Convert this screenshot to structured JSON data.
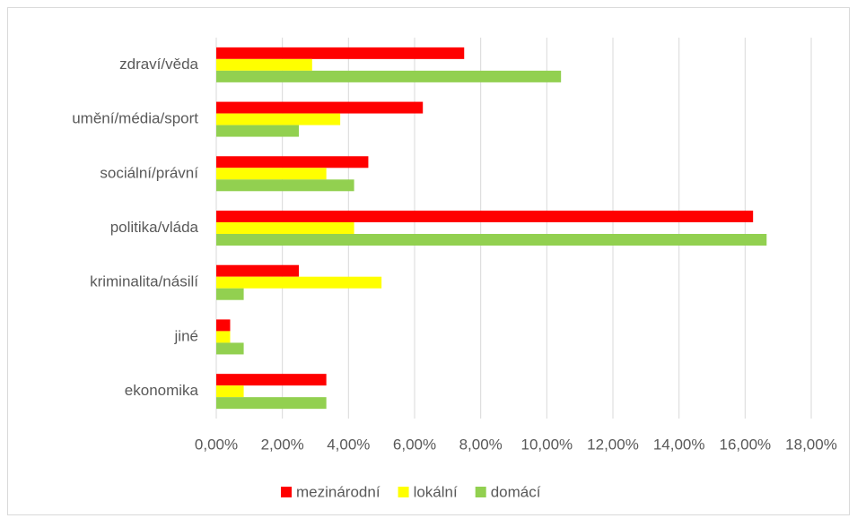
{
  "chart_data": {
    "type": "bar",
    "orientation": "horizontal",
    "categories": [
      "zdraví/věda",
      "umění/média/sport",
      "sociální/právní",
      "politika/vláda",
      "kriminalita/násilí",
      "jiné",
      "ekonomika"
    ],
    "series": [
      {
        "name": "mezinárodní",
        "color": "#ff0000",
        "values": [
          7.5,
          6.25,
          4.6,
          16.24,
          2.5,
          0.42,
          3.33
        ]
      },
      {
        "name": "lokální",
        "color": "#ffff00",
        "values": [
          2.9,
          3.75,
          3.33,
          4.17,
          5.0,
          0.42,
          0.83
        ]
      },
      {
        "name": "domácí",
        "color": "#92d050",
        "values": [
          10.43,
          2.5,
          4.17,
          16.65,
          0.83,
          0.83,
          3.33
        ]
      }
    ],
    "xlim": [
      0,
      18
    ],
    "xticks": [
      {
        "value": 0,
        "label": "0,00%"
      },
      {
        "value": 2,
        "label": "2,00%"
      },
      {
        "value": 4,
        "label": "4,00%"
      },
      {
        "value": 6,
        "label": "6,00%"
      },
      {
        "value": 8,
        "label": "8,00%"
      },
      {
        "value": 10,
        "label": "10,00%"
      },
      {
        "value": 12,
        "label": "12,00%"
      },
      {
        "value": 14,
        "label": "14,00%"
      },
      {
        "value": 16,
        "label": "16,00%"
      },
      {
        "value": 18,
        "label": "18,00%"
      }
    ],
    "grid": true,
    "legend": "bottom"
  }
}
